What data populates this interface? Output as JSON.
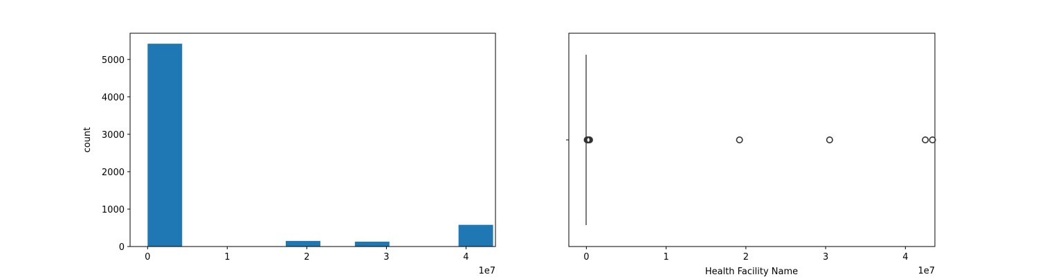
{
  "chart_data": [
    {
      "type": "bar",
      "subtype": "histogram",
      "xlabel": "",
      "ylabel": "count",
      "x_offset_text": "1e7",
      "xlim": [
        -0.22,
        4.37
      ],
      "ylim": [
        0,
        5700
      ],
      "xticks": [
        0,
        1,
        2,
        3,
        4
      ],
      "yticks": [
        0,
        1000,
        2000,
        3000,
        4000,
        5000
      ],
      "bins": [
        {
          "start": 0.0,
          "end": 0.434,
          "count": 5420
        },
        {
          "start": 0.434,
          "end": 0.868,
          "count": 0
        },
        {
          "start": 0.868,
          "end": 1.302,
          "count": 0
        },
        {
          "start": 1.302,
          "end": 1.736,
          "count": 0
        },
        {
          "start": 1.736,
          "end": 2.17,
          "count": 150
        },
        {
          "start": 2.17,
          "end": 2.604,
          "count": 0
        },
        {
          "start": 2.604,
          "end": 3.038,
          "count": 130
        },
        {
          "start": 3.038,
          "end": 3.472,
          "count": 0
        },
        {
          "start": 3.472,
          "end": 3.906,
          "count": 0
        },
        {
          "start": 3.906,
          "end": 4.34,
          "count": 580
        }
      ],
      "color": "#1f77b4",
      "grid": false
    },
    {
      "type": "box",
      "xlabel": "Health Facility Name",
      "ylabel": "",
      "x_offset_text": "1e7",
      "xlim": [
        -0.22,
        4.37
      ],
      "xticks": [
        0,
        1,
        2,
        3,
        4
      ],
      "box": {
        "q1": 0.0,
        "median": 0.0,
        "q3": 0.0,
        "whisker_low": 0.0,
        "whisker_high": 0.0
      },
      "outliers": [
        0.01,
        0.02,
        0.03,
        0.04,
        1.92,
        3.05,
        4.25,
        4.34
      ],
      "color": "#333333",
      "grid": false
    }
  ]
}
